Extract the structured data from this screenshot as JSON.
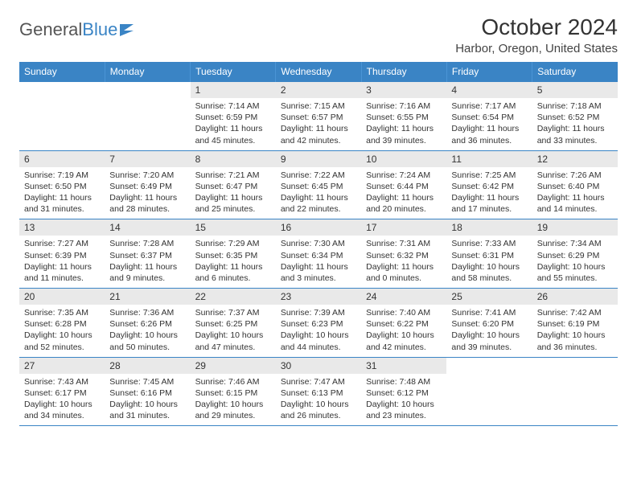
{
  "logo": {
    "text1": "General",
    "text2": "Blue"
  },
  "title": "October 2024",
  "location": "Harbor, Oregon, United States",
  "colors": {
    "accent": "#3a84c5",
    "daynum_bg": "#e9e9e9",
    "text": "#333333",
    "bg": "#ffffff"
  },
  "typography": {
    "title_fontsize": 28,
    "location_fontsize": 15,
    "header_fontsize": 12,
    "cell_fontsize": 10.5
  },
  "weekdays": [
    "Sunday",
    "Monday",
    "Tuesday",
    "Wednesday",
    "Thursday",
    "Friday",
    "Saturday"
  ],
  "weeks": [
    [
      {
        "empty": true
      },
      {
        "empty": true
      },
      {
        "day": "1",
        "sunrise": "Sunrise: 7:14 AM",
        "sunset": "Sunset: 6:59 PM",
        "daylight": "Daylight: 11 hours and 45 minutes."
      },
      {
        "day": "2",
        "sunrise": "Sunrise: 7:15 AM",
        "sunset": "Sunset: 6:57 PM",
        "daylight": "Daylight: 11 hours and 42 minutes."
      },
      {
        "day": "3",
        "sunrise": "Sunrise: 7:16 AM",
        "sunset": "Sunset: 6:55 PM",
        "daylight": "Daylight: 11 hours and 39 minutes."
      },
      {
        "day": "4",
        "sunrise": "Sunrise: 7:17 AM",
        "sunset": "Sunset: 6:54 PM",
        "daylight": "Daylight: 11 hours and 36 minutes."
      },
      {
        "day": "5",
        "sunrise": "Sunrise: 7:18 AM",
        "sunset": "Sunset: 6:52 PM",
        "daylight": "Daylight: 11 hours and 33 minutes."
      }
    ],
    [
      {
        "day": "6",
        "sunrise": "Sunrise: 7:19 AM",
        "sunset": "Sunset: 6:50 PM",
        "daylight": "Daylight: 11 hours and 31 minutes."
      },
      {
        "day": "7",
        "sunrise": "Sunrise: 7:20 AM",
        "sunset": "Sunset: 6:49 PM",
        "daylight": "Daylight: 11 hours and 28 minutes."
      },
      {
        "day": "8",
        "sunrise": "Sunrise: 7:21 AM",
        "sunset": "Sunset: 6:47 PM",
        "daylight": "Daylight: 11 hours and 25 minutes."
      },
      {
        "day": "9",
        "sunrise": "Sunrise: 7:22 AM",
        "sunset": "Sunset: 6:45 PM",
        "daylight": "Daylight: 11 hours and 22 minutes."
      },
      {
        "day": "10",
        "sunrise": "Sunrise: 7:24 AM",
        "sunset": "Sunset: 6:44 PM",
        "daylight": "Daylight: 11 hours and 20 minutes."
      },
      {
        "day": "11",
        "sunrise": "Sunrise: 7:25 AM",
        "sunset": "Sunset: 6:42 PM",
        "daylight": "Daylight: 11 hours and 17 minutes."
      },
      {
        "day": "12",
        "sunrise": "Sunrise: 7:26 AM",
        "sunset": "Sunset: 6:40 PM",
        "daylight": "Daylight: 11 hours and 14 minutes."
      }
    ],
    [
      {
        "day": "13",
        "sunrise": "Sunrise: 7:27 AM",
        "sunset": "Sunset: 6:39 PM",
        "daylight": "Daylight: 11 hours and 11 minutes."
      },
      {
        "day": "14",
        "sunrise": "Sunrise: 7:28 AM",
        "sunset": "Sunset: 6:37 PM",
        "daylight": "Daylight: 11 hours and 9 minutes."
      },
      {
        "day": "15",
        "sunrise": "Sunrise: 7:29 AM",
        "sunset": "Sunset: 6:35 PM",
        "daylight": "Daylight: 11 hours and 6 minutes."
      },
      {
        "day": "16",
        "sunrise": "Sunrise: 7:30 AM",
        "sunset": "Sunset: 6:34 PM",
        "daylight": "Daylight: 11 hours and 3 minutes."
      },
      {
        "day": "17",
        "sunrise": "Sunrise: 7:31 AM",
        "sunset": "Sunset: 6:32 PM",
        "daylight": "Daylight: 11 hours and 0 minutes."
      },
      {
        "day": "18",
        "sunrise": "Sunrise: 7:33 AM",
        "sunset": "Sunset: 6:31 PM",
        "daylight": "Daylight: 10 hours and 58 minutes."
      },
      {
        "day": "19",
        "sunrise": "Sunrise: 7:34 AM",
        "sunset": "Sunset: 6:29 PM",
        "daylight": "Daylight: 10 hours and 55 minutes."
      }
    ],
    [
      {
        "day": "20",
        "sunrise": "Sunrise: 7:35 AM",
        "sunset": "Sunset: 6:28 PM",
        "daylight": "Daylight: 10 hours and 52 minutes."
      },
      {
        "day": "21",
        "sunrise": "Sunrise: 7:36 AM",
        "sunset": "Sunset: 6:26 PM",
        "daylight": "Daylight: 10 hours and 50 minutes."
      },
      {
        "day": "22",
        "sunrise": "Sunrise: 7:37 AM",
        "sunset": "Sunset: 6:25 PM",
        "daylight": "Daylight: 10 hours and 47 minutes."
      },
      {
        "day": "23",
        "sunrise": "Sunrise: 7:39 AM",
        "sunset": "Sunset: 6:23 PM",
        "daylight": "Daylight: 10 hours and 44 minutes."
      },
      {
        "day": "24",
        "sunrise": "Sunrise: 7:40 AM",
        "sunset": "Sunset: 6:22 PM",
        "daylight": "Daylight: 10 hours and 42 minutes."
      },
      {
        "day": "25",
        "sunrise": "Sunrise: 7:41 AM",
        "sunset": "Sunset: 6:20 PM",
        "daylight": "Daylight: 10 hours and 39 minutes."
      },
      {
        "day": "26",
        "sunrise": "Sunrise: 7:42 AM",
        "sunset": "Sunset: 6:19 PM",
        "daylight": "Daylight: 10 hours and 36 minutes."
      }
    ],
    [
      {
        "day": "27",
        "sunrise": "Sunrise: 7:43 AM",
        "sunset": "Sunset: 6:17 PM",
        "daylight": "Daylight: 10 hours and 34 minutes."
      },
      {
        "day": "28",
        "sunrise": "Sunrise: 7:45 AM",
        "sunset": "Sunset: 6:16 PM",
        "daylight": "Daylight: 10 hours and 31 minutes."
      },
      {
        "day": "29",
        "sunrise": "Sunrise: 7:46 AM",
        "sunset": "Sunset: 6:15 PM",
        "daylight": "Daylight: 10 hours and 29 minutes."
      },
      {
        "day": "30",
        "sunrise": "Sunrise: 7:47 AM",
        "sunset": "Sunset: 6:13 PM",
        "daylight": "Daylight: 10 hours and 26 minutes."
      },
      {
        "day": "31",
        "sunrise": "Sunrise: 7:48 AM",
        "sunset": "Sunset: 6:12 PM",
        "daylight": "Daylight: 10 hours and 23 minutes."
      },
      {
        "empty": true
      },
      {
        "empty": true
      }
    ]
  ]
}
